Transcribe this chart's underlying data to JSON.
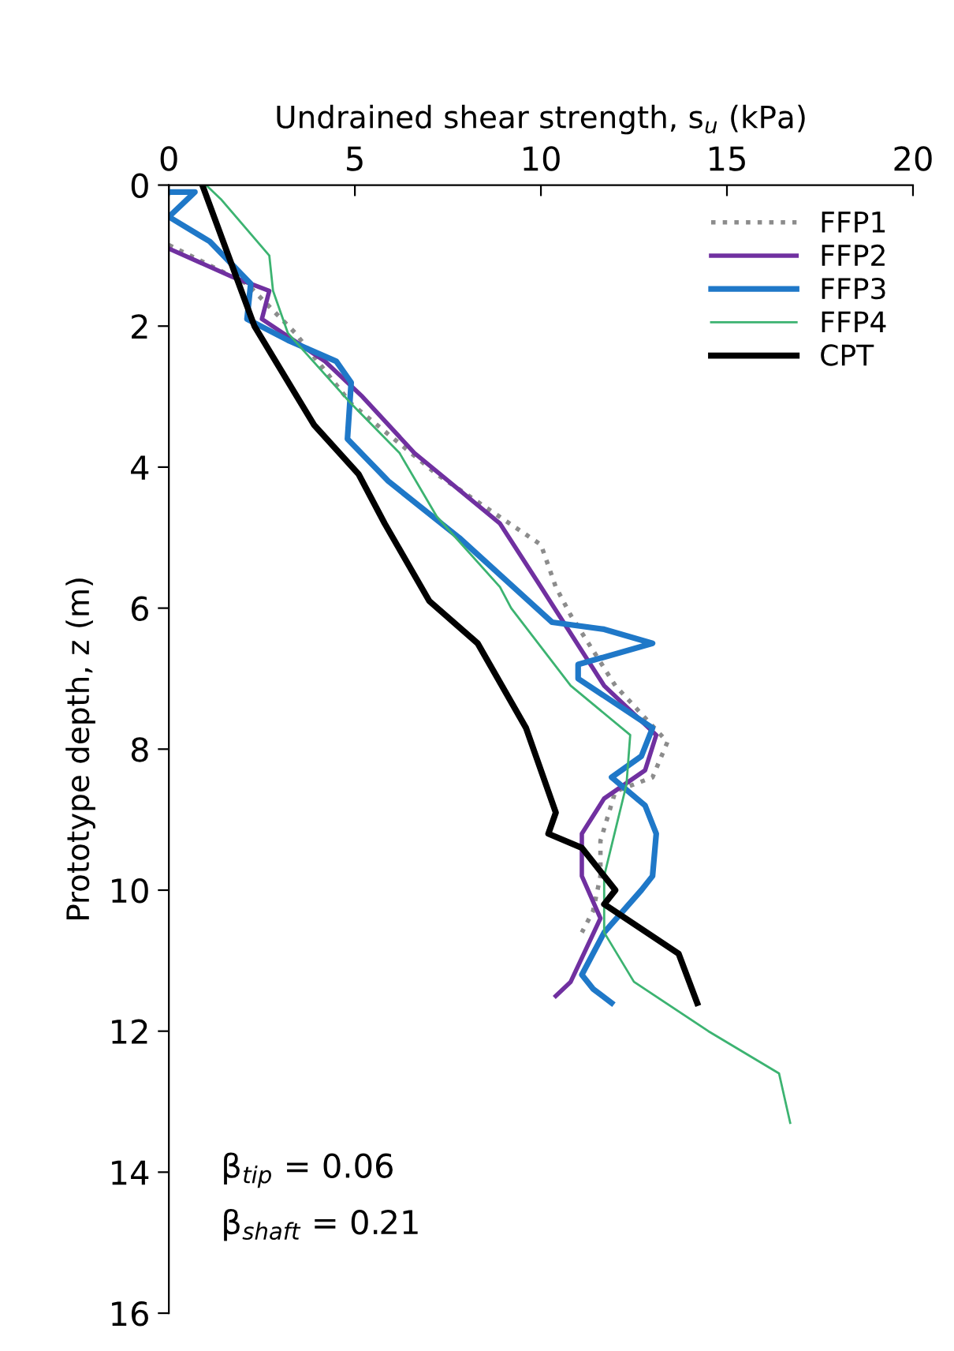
{
  "chart_data": {
    "type": "line",
    "xlabel": "Undrained shear strength, s$_{u}$ (kPa)",
    "ylabel": "Prototype depth, z (m)",
    "xlim": [
      0,
      20
    ],
    "xticks": [
      0,
      5,
      10,
      15,
      20
    ],
    "ylim": [
      16,
      0
    ],
    "yticks": [
      0,
      2,
      4,
      6,
      8,
      10,
      12,
      14,
      16
    ],
    "grid": false,
    "legend": "top right",
    "annotations": [
      "β$_{tip}$ = 0.06",
      "β$_{shaft}$ = 0.21"
    ],
    "series": [
      {
        "name": "FFP1",
        "color": "#8c8c8c",
        "line_style": "dotted",
        "x": [
          0,
          2.1,
          3.4,
          4.9,
          7.2,
          10.0,
          10.4,
          10.8,
          12.0,
          13.4,
          13.0,
          12.0,
          11.6,
          11.6,
          11.4,
          11.1
        ],
        "values": [
          0.85,
          1.4,
          2.1,
          3.1,
          4.1,
          5.1,
          5.7,
          6.1,
          7.1,
          7.9,
          8.4,
          8.6,
          9.3,
          9.8,
          10.3,
          10.6
        ]
      },
      {
        "name": "FFP2",
        "color": "#7030a0",
        "line_style": "solid",
        "x": [
          0,
          1.7,
          2.7,
          2.5,
          4.2,
          5.2,
          6.6,
          8.9,
          10.0,
          11.7,
          13.1,
          12.8,
          11.7,
          11.1,
          11.1,
          11.6,
          10.8,
          10.4
        ],
        "values": [
          0.9,
          1.3,
          1.5,
          1.9,
          2.5,
          3.0,
          3.8,
          4.8,
          5.7,
          7.1,
          7.8,
          8.3,
          8.7,
          9.2,
          9.8,
          10.4,
          11.3,
          11.5
        ]
      },
      {
        "name": "FFP3",
        "color": "#1f78c8",
        "line_style": "solid",
        "x": [
          0,
          0.7,
          0,
          1.1,
          2.2,
          2.1,
          3.2,
          4.5,
          4.9,
          4.8,
          5.9,
          7.8,
          10.3,
          11.7,
          13.0,
          11.0,
          11.0,
          13.0,
          12.7,
          11.9,
          12.8,
          13.1,
          13.0,
          12.7,
          11.7,
          11.1,
          11.4,
          11.9
        ],
        "values": [
          0.1,
          0.1,
          0.45,
          0.8,
          1.4,
          1.9,
          2.2,
          2.5,
          2.8,
          3.6,
          4.2,
          5.0,
          6.2,
          6.3,
          6.5,
          6.8,
          7.0,
          7.7,
          8.1,
          8.4,
          8.8,
          9.2,
          9.8,
          10.0,
          10.6,
          11.2,
          11.4,
          11.6
        ]
      },
      {
        "name": "FFP4",
        "color": "#3cb371",
        "line_style": "solid",
        "x": [
          1.0,
          1.4,
          2.7,
          2.8,
          3.2,
          4.9,
          6.2,
          7.2,
          8.9,
          9.2,
          10.8,
          12.4,
          12.3,
          11.7,
          11.7,
          12.5,
          14.5,
          16.4,
          16.7
        ],
        "values": [
          0,
          0.2,
          1.0,
          1.5,
          2.1,
          3.1,
          3.8,
          4.7,
          5.7,
          6.0,
          7.1,
          7.8,
          8.5,
          9.8,
          10.6,
          11.3,
          12.0,
          12.6,
          13.3
        ]
      },
      {
        "name": "CPT",
        "color": "#000000",
        "line_style": "solid",
        "x": [
          0.9,
          2.3,
          3.9,
          5.1,
          5.8,
          7.0,
          8.3,
          9.6,
          10.4,
          10.2,
          11.1,
          12.0,
          11.7,
          13.7,
          14.2
        ],
        "values": [
          0,
          2.0,
          3.4,
          4.1,
          4.8,
          5.9,
          6.5,
          7.7,
          8.9,
          9.2,
          9.4,
          10.0,
          10.2,
          10.9,
          11.6
        ]
      }
    ]
  }
}
